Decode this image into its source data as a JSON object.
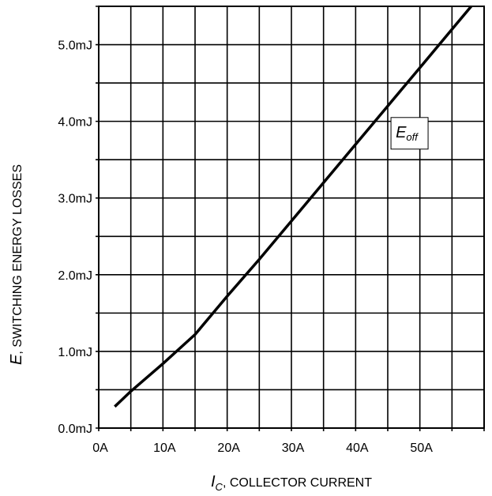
{
  "chart_data": {
    "type": "line",
    "title": "",
    "xlabel": {
      "symbol": "I",
      "subscript": "C",
      "text": ", COLLECTOR CURRENT"
    },
    "ylabel": {
      "symbol": "E",
      "text": ", SWITCHING ENERGY LOSSES"
    },
    "xlim": [
      0,
      60
    ],
    "ylim": [
      0,
      5.5
    ],
    "x_ticks": [
      {
        "value": 0,
        "label": "0A"
      },
      {
        "value": 10,
        "label": "10A"
      },
      {
        "value": 20,
        "label": "20A"
      },
      {
        "value": 30,
        "label": "30A"
      },
      {
        "value": 40,
        "label": "40A"
      },
      {
        "value": 50,
        "label": "50A"
      }
    ],
    "y_ticks": [
      {
        "value": 0,
        "label": "0.0mJ"
      },
      {
        "value": 1,
        "label": "1.0mJ"
      },
      {
        "value": 2,
        "label": "2.0mJ"
      },
      {
        "value": 3,
        "label": "3.0mJ"
      },
      {
        "value": 4,
        "label": "4.0mJ"
      },
      {
        "value": 5,
        "label": "5.0mJ"
      }
    ],
    "grid": true,
    "x_minor_step": 5,
    "y_minor_step": 0.5,
    "series": [
      {
        "name": "Eoff",
        "label_symbol": "E",
        "label_subscript": "off",
        "x": [
          2.5,
          5,
          10,
          15,
          20,
          25,
          30,
          35,
          40,
          45,
          50,
          55,
          58
        ],
        "y": [
          0.28,
          0.48,
          0.84,
          1.22,
          1.72,
          2.2,
          2.7,
          3.2,
          3.7,
          4.2,
          4.7,
          5.2,
          5.5
        ]
      }
    ]
  }
}
